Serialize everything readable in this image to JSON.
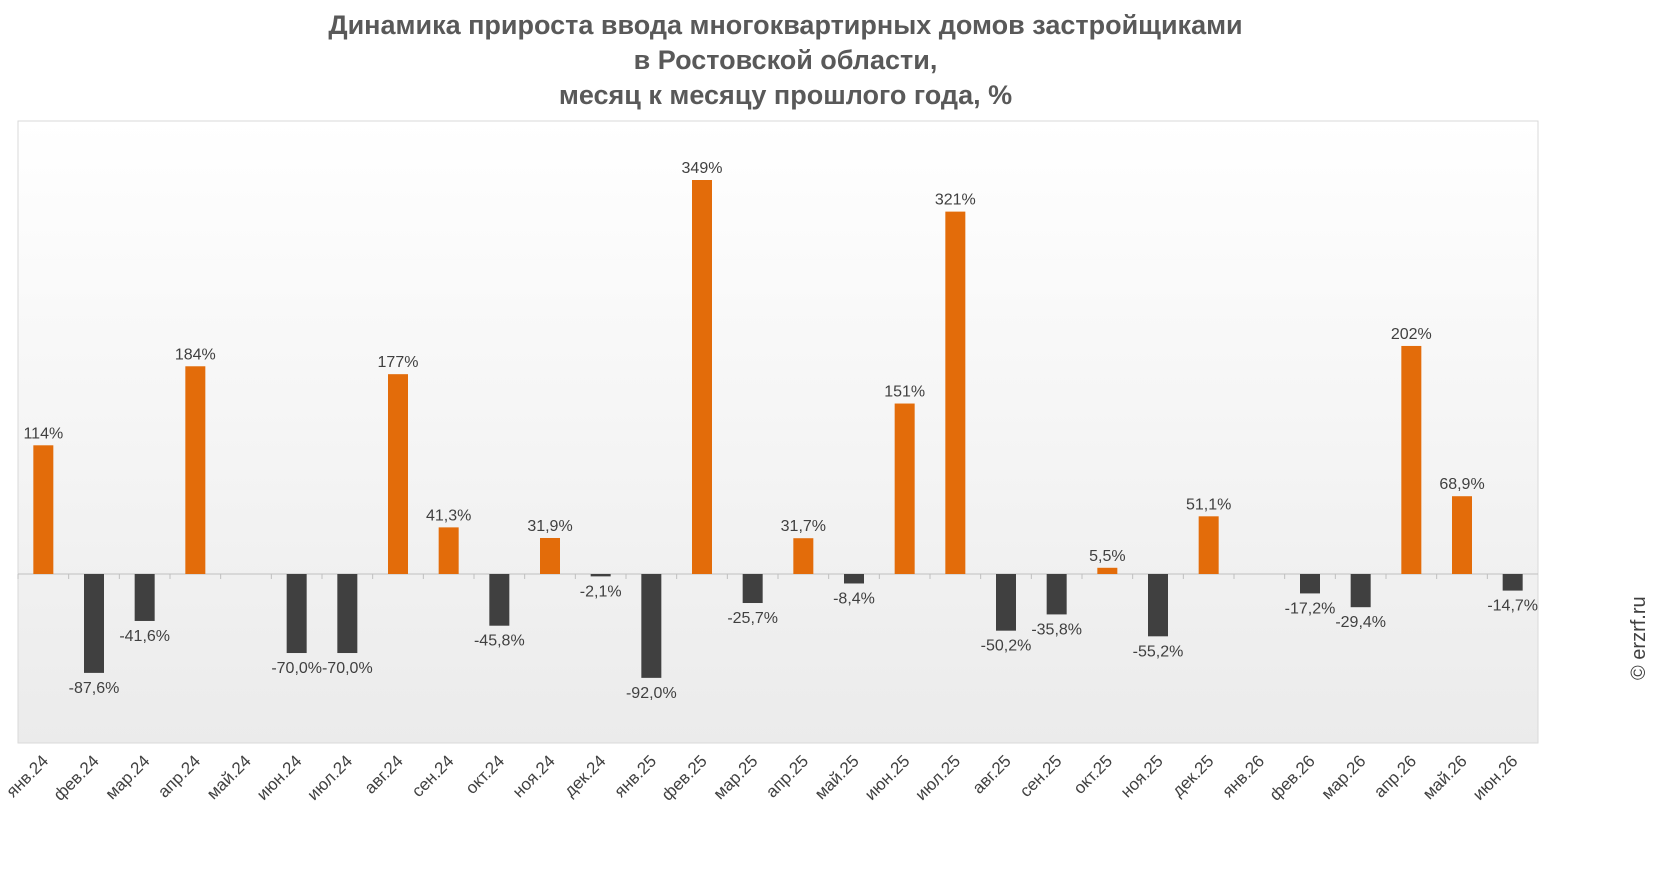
{
  "chart_data": {
    "type": "bar",
    "title_lines": [
      "Динамика прироста ввода многоквартирных домов застройщиками",
      "в Ростовской области,",
      "месяц к месяцу прошлого года, %"
    ],
    "xlabel": "",
    "ylabel": "",
    "grid": false,
    "categories": [
      "янв.24",
      "фев.24",
      "мар.24",
      "апр.24",
      "май.24",
      "июн.24",
      "июл.24",
      "авг.24",
      "сен.24",
      "окт.24",
      "ноя.24",
      "дек.24",
      "янв.25",
      "фев.25",
      "мар.25",
      "апр.25",
      "май.25",
      "июн.25",
      "июл.25",
      "авг.25",
      "сен.25",
      "окт.25",
      "ноя.25",
      "дек.25",
      "янв.26",
      "фев.26",
      "мар.26",
      "апр.26",
      "май.26",
      "июн.26"
    ],
    "values": [
      114,
      -87.6,
      -41.6,
      184,
      null,
      -70.0,
      -70.0,
      177,
      41.3,
      -45.8,
      31.9,
      -2.1,
      -92.0,
      349,
      -25.7,
      31.7,
      -8.4,
      151,
      321,
      -50.2,
      -35.8,
      5.5,
      -55.2,
      51.1,
      null,
      -17.2,
      -29.4,
      202,
      68.9,
      -14.7
    ],
    "labels": [
      "114%",
      "-87,6%",
      "-41,6%",
      "184%",
      "",
      "-70,0%",
      "-70,0%",
      "177%",
      "41,3%",
      "-45,8%",
      "31,9%",
      "-2,1%",
      "-92,0%",
      "349%",
      "-25,7%",
      "31,7%",
      "-8,4%",
      "151%",
      "321%",
      "-50,2%",
      "-35,8%",
      "5,5%",
      "-55,2%",
      "51,1%",
      "",
      "-17,2%",
      "-29,4%",
      "202%",
      "68,9%",
      "-14,7%"
    ],
    "ylim": [
      -150,
      400
    ],
    "colors": {
      "positive": "#E36C0A",
      "negative": "#404040"
    }
  },
  "credit": "© erzrf.ru"
}
